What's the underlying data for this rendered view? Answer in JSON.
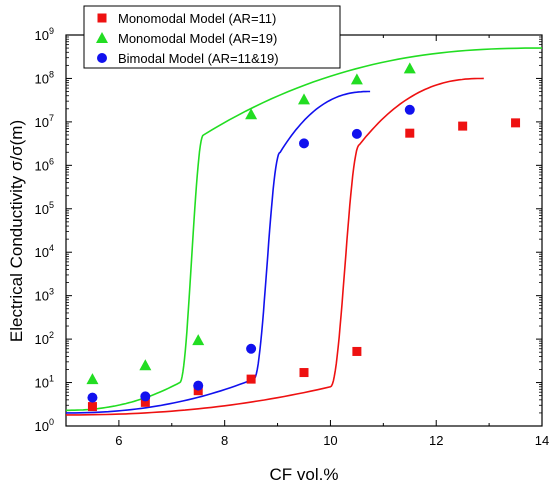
{
  "chart_data": {
    "type": "scatter",
    "title": "",
    "xlabel": "CF vol.%",
    "ylabel": "Electrical Conductivity σ/σ(m)",
    "xlim": [
      5,
      14
    ],
    "ylim_log10": [
      0,
      9
    ],
    "yscale": "log",
    "x_ticks": [
      6,
      8,
      10,
      12,
      14
    ],
    "x_tick_labels": [
      "6",
      "8",
      "10",
      "12",
      "14"
    ],
    "y_tick_labels": [
      {
        "base": "10",
        "exp": "0"
      },
      {
        "base": "10",
        "exp": "1"
      },
      {
        "base": "10",
        "exp": "2"
      },
      {
        "base": "10",
        "exp": "3"
      },
      {
        "base": "10",
        "exp": "4"
      },
      {
        "base": "10",
        "exp": "5"
      },
      {
        "base": "10",
        "exp": "6"
      },
      {
        "base": "10",
        "exp": "7"
      },
      {
        "base": "10",
        "exp": "8"
      },
      {
        "base": "10",
        "exp": "9"
      }
    ],
    "legend_position": "top-left",
    "series": [
      {
        "name": "Monomodal Model (AR=11)",
        "marker": "square",
        "color": "#ee1111",
        "points": [
          [
            5.5,
            2.8
          ],
          [
            6.5,
            3.5
          ],
          [
            7.5,
            6.5
          ],
          [
            8.5,
            12
          ],
          [
            9.5,
            17
          ],
          [
            10.5,
            52
          ],
          [
            11.5,
            5500000
          ],
          [
            12.5,
            8000000
          ],
          [
            13.5,
            9500000
          ]
        ],
        "fit_curve": {
          "color": "#ee1111",
          "x_start": 5.0,
          "x_end": 12.9,
          "low_start": 1.8,
          "low_end_x": 10.0,
          "low_end": 8,
          "rise_x": 10.25,
          "high_start_x": 10.55,
          "high_start": 3000000,
          "high_end": 100000000
        }
      },
      {
        "name": "Monomodal Model (AR=19)",
        "marker": "triangle",
        "color": "#22dd22",
        "points": [
          [
            5.5,
            12
          ],
          [
            6.5,
            25
          ],
          [
            7.5,
            95
          ],
          [
            8.5,
            15000000
          ],
          [
            9.5,
            33000000
          ],
          [
            10.5,
            95000000
          ],
          [
            11.5,
            170000000
          ]
        ],
        "fit_curve": {
          "color": "#22dd22",
          "x_start": 5.0,
          "x_end": 14.0,
          "low_start": 2.3,
          "low_end_x": 7.15,
          "low_end": 10,
          "rise_x": 7.35,
          "high_start_x": 7.6,
          "high_start": 5000000,
          "high_end": 500000000
        }
      },
      {
        "name": "Bimodal Model (AR=11&19)",
        "marker": "circle",
        "color": "#1111ee",
        "points": [
          [
            5.5,
            4.5
          ],
          [
            6.5,
            4.8
          ],
          [
            7.5,
            8.5
          ],
          [
            8.5,
            60
          ],
          [
            9.5,
            3200000
          ],
          [
            10.5,
            5300000
          ],
          [
            11.5,
            19000000
          ]
        ],
        "fit_curve": {
          "color": "#1111ee",
          "x_start": 5.0,
          "x_end": 10.75,
          "low_start": 2.0,
          "low_end_x": 8.55,
          "low_end": 12,
          "rise_x": 8.8,
          "high_start_x": 9.05,
          "high_start": 2000000,
          "high_end": 50000000
        }
      }
    ]
  }
}
